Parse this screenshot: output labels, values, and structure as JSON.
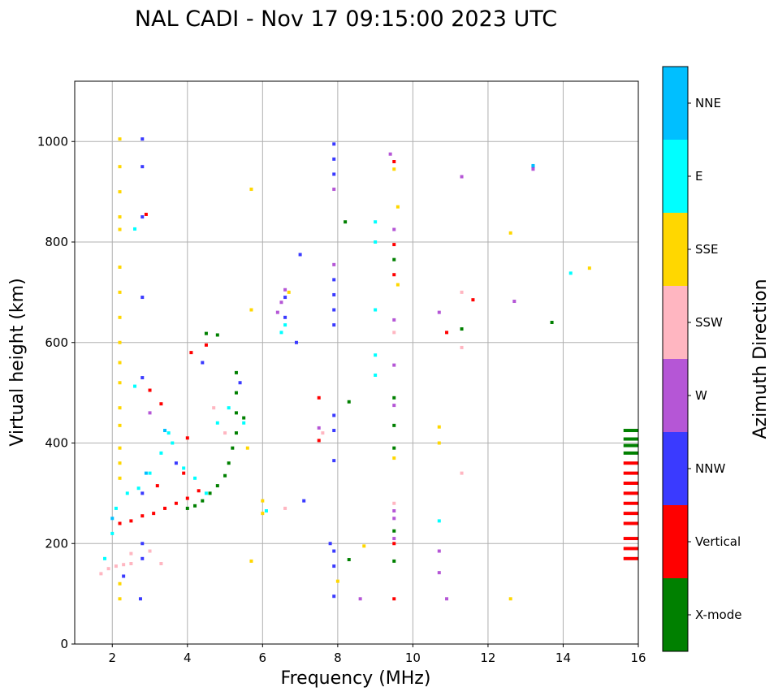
{
  "chart_data": {
    "type": "scatter",
    "title": "NAL CADI - Nov 17 09:15:00 2023 UTC",
    "xlabel": "Frequency (MHz)",
    "ylabel": "Virtual height (km)",
    "xlim": [
      1,
      16
    ],
    "ylim": [
      0,
      1120
    ],
    "xticks": [
      "2",
      "4",
      "6",
      "8",
      "10",
      "12",
      "14",
      "16"
    ],
    "yticks": [
      "0",
      "200",
      "400",
      "600",
      "800",
      "1000"
    ],
    "grid": true,
    "colorbar": {
      "title": "Azimuth Direction",
      "categories": [
        {
          "name": "X-mode",
          "color": "#008000"
        },
        {
          "name": "Vertical",
          "color": "#ff0000"
        },
        {
          "name": "NNW",
          "color": "#3a3aff"
        },
        {
          "name": "W",
          "color": "#b556d6"
        },
        {
          "name": "SSW",
          "color": "#ffb6c1"
        },
        {
          "name": "SSE",
          "color": "#ffd700"
        },
        {
          "name": "E",
          "color": "#00ffff"
        },
        {
          "name": "NNE",
          "color": "#00bfff"
        }
      ]
    },
    "series": [
      {
        "name": "X-mode",
        "points": [
          [
            4.0,
            270
          ],
          [
            4.2,
            275
          ],
          [
            4.4,
            285
          ],
          [
            4.6,
            300
          ],
          [
            4.8,
            315
          ],
          [
            5.0,
            335
          ],
          [
            5.1,
            360
          ],
          [
            5.2,
            390
          ],
          [
            5.3,
            420
          ],
          [
            5.3,
            460
          ],
          [
            5.3,
            500
          ],
          [
            5.3,
            540
          ],
          [
            5.5,
            450
          ],
          [
            4.5,
            618
          ],
          [
            4.8,
            615
          ],
          [
            8.2,
            840
          ],
          [
            9.5,
            765
          ],
          [
            8.3,
            482
          ],
          [
            9.5,
            490
          ],
          [
            9.5,
            435
          ],
          [
            9.5,
            390
          ],
          [
            9.5,
            225
          ],
          [
            9.5,
            165
          ],
          [
            8.3,
            168
          ],
          [
            11.3,
            627
          ],
          [
            13.7,
            640
          ],
          [
            15.8,
            425
          ],
          [
            15.8,
            408
          ],
          [
            15.8,
            395
          ],
          [
            15.8,
            380
          ]
        ]
      },
      {
        "name": "Vertical",
        "points": [
          [
            2.2,
            240
          ],
          [
            2.5,
            245
          ],
          [
            2.8,
            255
          ],
          [
            3.1,
            260
          ],
          [
            3.4,
            270
          ],
          [
            3.7,
            280
          ],
          [
            4.0,
            290
          ],
          [
            4.3,
            305
          ],
          [
            3.2,
            315
          ],
          [
            3.9,
            340
          ],
          [
            4.0,
            410
          ],
          [
            4.1,
            580
          ],
          [
            4.5,
            595
          ],
          [
            3.0,
            505
          ],
          [
            3.3,
            478
          ],
          [
            2.9,
            855
          ],
          [
            7.5,
            490
          ],
          [
            7.5,
            405
          ],
          [
            9.5,
            960
          ],
          [
            9.5,
            795
          ],
          [
            9.5,
            735
          ],
          [
            9.5,
            200
          ],
          [
            9.5,
            90
          ],
          [
            10.9,
            620
          ],
          [
            11.6,
            685
          ],
          [
            15.8,
            360
          ],
          [
            15.8,
            340
          ],
          [
            15.8,
            320
          ],
          [
            15.8,
            300
          ],
          [
            15.8,
            280
          ],
          [
            15.8,
            260
          ],
          [
            15.8,
            240
          ],
          [
            15.8,
            210
          ],
          [
            15.8,
            190
          ],
          [
            15.8,
            170
          ]
        ]
      },
      {
        "name": "NNW",
        "points": [
          [
            2.8,
            1005
          ],
          [
            2.8,
            950
          ],
          [
            2.8,
            850
          ],
          [
            2.8,
            690
          ],
          [
            2.8,
            530
          ],
          [
            2.8,
            300
          ],
          [
            2.8,
            200
          ],
          [
            2.8,
            170
          ],
          [
            2.75,
            90
          ],
          [
            2.3,
            135
          ],
          [
            6.6,
            690
          ],
          [
            6.6,
            650
          ],
          [
            7.0,
            775
          ],
          [
            6.9,
            600
          ],
          [
            7.1,
            285
          ],
          [
            7.9,
            995
          ],
          [
            7.9,
            965
          ],
          [
            7.9,
            935
          ],
          [
            7.9,
            725
          ],
          [
            7.9,
            695
          ],
          [
            7.9,
            665
          ],
          [
            7.9,
            635
          ],
          [
            7.9,
            455
          ],
          [
            7.9,
            425
          ],
          [
            7.9,
            365
          ],
          [
            7.8,
            200
          ],
          [
            7.9,
            185
          ],
          [
            7.9,
            155
          ],
          [
            7.9,
            95
          ],
          [
            13.2,
            950
          ],
          [
            4.4,
            560
          ],
          [
            3.7,
            360
          ],
          [
            5.4,
            520
          ]
        ]
      },
      {
        "name": "W",
        "points": [
          [
            6.5,
            680
          ],
          [
            6.4,
            660
          ],
          [
            6.6,
            705
          ],
          [
            7.5,
            430
          ],
          [
            9.4,
            975
          ],
          [
            9.5,
            825
          ],
          [
            9.5,
            645
          ],
          [
            9.5,
            555
          ],
          [
            9.5,
            475
          ],
          [
            9.5,
            265
          ],
          [
            9.5,
            250
          ],
          [
            9.5,
            210
          ],
          [
            10.7,
            660
          ],
          [
            10.7,
            185
          ],
          [
            10.7,
            142
          ],
          [
            10.9,
            90
          ],
          [
            11.3,
            930
          ],
          [
            12.7,
            682
          ],
          [
            13.2,
            945
          ],
          [
            8.6,
            90
          ],
          [
            7.9,
            755
          ],
          [
            7.9,
            905
          ],
          [
            3.0,
            460
          ]
        ]
      },
      {
        "name": "SSW",
        "points": [
          [
            1.7,
            140
          ],
          [
            1.9,
            150
          ],
          [
            2.1,
            155
          ],
          [
            2.3,
            158
          ],
          [
            2.5,
            160
          ],
          [
            2.5,
            180
          ],
          [
            3.3,
            160
          ],
          [
            3.0,
            185
          ],
          [
            6.6,
            270
          ],
          [
            9.5,
            620
          ],
          [
            9.5,
            280
          ],
          [
            11.3,
            700
          ],
          [
            11.3,
            590
          ],
          [
            11.3,
            340
          ],
          [
            7.6,
            420
          ],
          [
            4.7,
            470
          ],
          [
            5.0,
            420
          ]
        ]
      },
      {
        "name": "SSE",
        "points": [
          [
            2.2,
            1005
          ],
          [
            2.2,
            950
          ],
          [
            2.2,
            900
          ],
          [
            2.2,
            850
          ],
          [
            2.2,
            825
          ],
          [
            2.2,
            750
          ],
          [
            2.2,
            700
          ],
          [
            2.2,
            650
          ],
          [
            2.2,
            600
          ],
          [
            2.2,
            560
          ],
          [
            2.2,
            520
          ],
          [
            2.2,
            470
          ],
          [
            2.2,
            435
          ],
          [
            2.2,
            390
          ],
          [
            2.2,
            360
          ],
          [
            2.2,
            330
          ],
          [
            2.2,
            120
          ],
          [
            2.2,
            90
          ],
          [
            5.7,
            905
          ],
          [
            5.7,
            665
          ],
          [
            5.7,
            165
          ],
          [
            6.0,
            285
          ],
          [
            6.0,
            260
          ],
          [
            6.7,
            700
          ],
          [
            8.0,
            125
          ],
          [
            8.7,
            195
          ],
          [
            9.5,
            945
          ],
          [
            9.6,
            870
          ],
          [
            9.6,
            715
          ],
          [
            9.5,
            370
          ],
          [
            10.7,
            432
          ],
          [
            10.7,
            400
          ],
          [
            12.6,
            818
          ],
          [
            12.6,
            90
          ],
          [
            14.7,
            748
          ],
          [
            5.6,
            390
          ]
        ]
      },
      {
        "name": "E",
        "points": [
          [
            1.8,
            170
          ],
          [
            2.0,
            220
          ],
          [
            2.1,
            270
          ],
          [
            2.4,
            300
          ],
          [
            2.7,
            310
          ],
          [
            3.0,
            340
          ],
          [
            3.3,
            380
          ],
          [
            3.5,
            420
          ],
          [
            3.6,
            400
          ],
          [
            3.9,
            350
          ],
          [
            4.2,
            330
          ],
          [
            4.5,
            300
          ],
          [
            4.8,
            440
          ],
          [
            5.1,
            470
          ],
          [
            5.5,
            440
          ],
          [
            6.5,
            620
          ],
          [
            6.6,
            635
          ],
          [
            6.1,
            265
          ],
          [
            9.0,
            840
          ],
          [
            9.0,
            800
          ],
          [
            9.0,
            665
          ],
          [
            9.0,
            575
          ],
          [
            9.0,
            535
          ],
          [
            10.7,
            245
          ],
          [
            14.2,
            738
          ],
          [
            2.6,
            826
          ],
          [
            2.6,
            513
          ]
        ]
      },
      {
        "name": "NNE",
        "points": [
          [
            13.2,
            952
          ],
          [
            2.0,
            250
          ],
          [
            2.9,
            340
          ],
          [
            3.4,
            425
          ]
        ]
      }
    ]
  }
}
